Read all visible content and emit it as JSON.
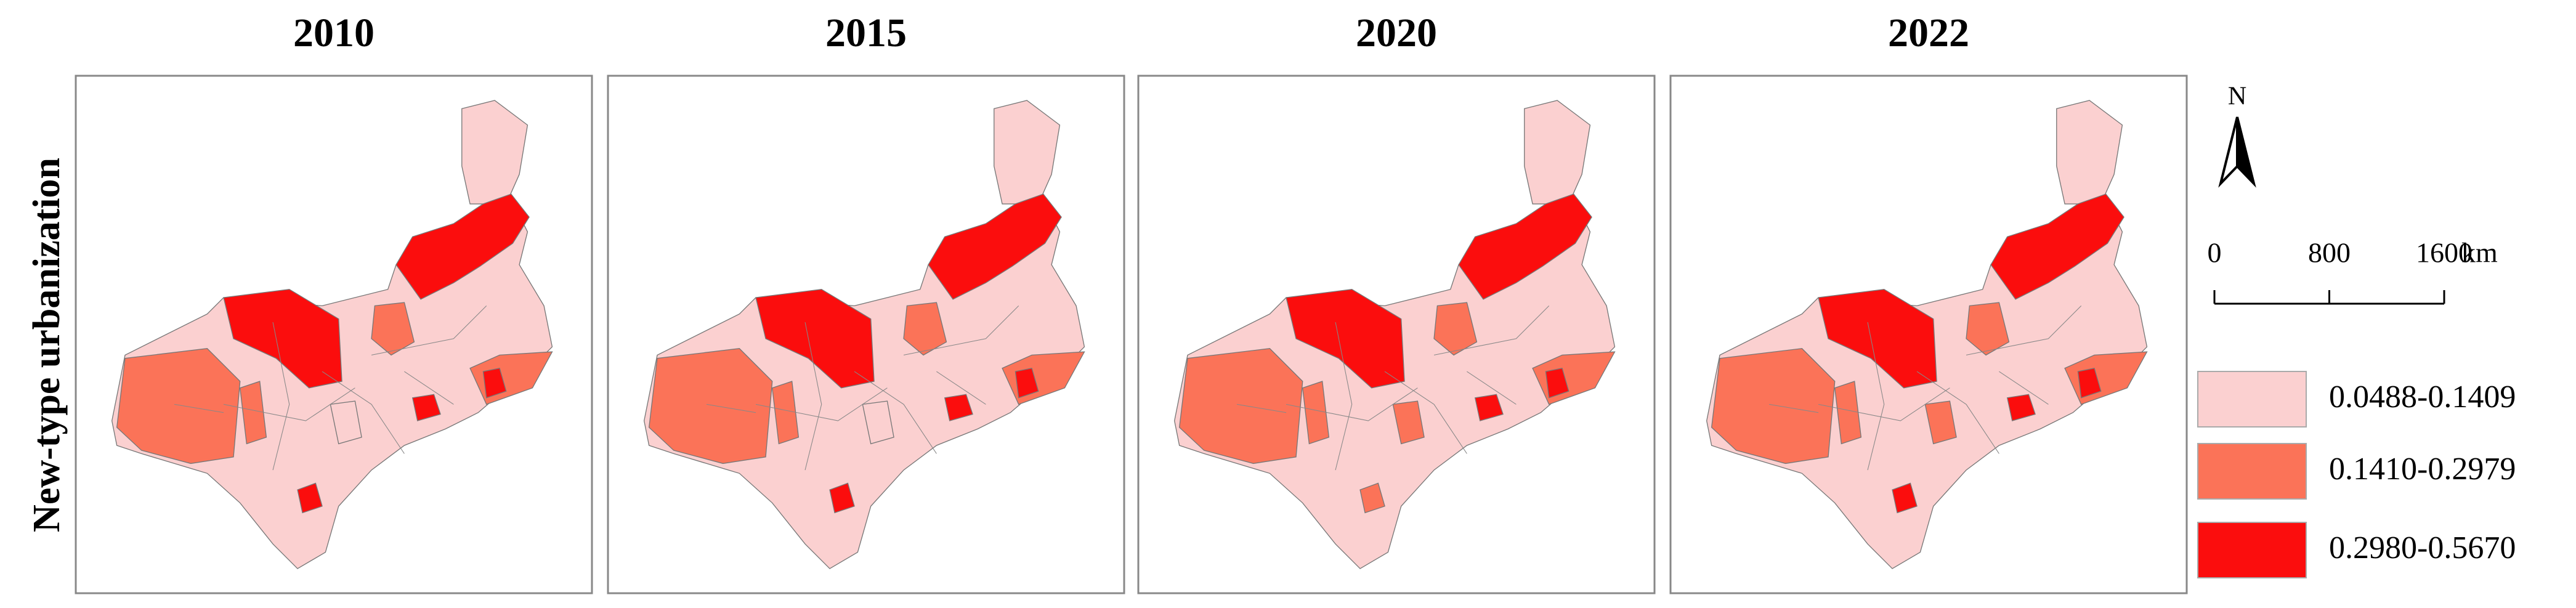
{
  "panels": [
    {
      "title": "2010"
    },
    {
      "title": "2015"
    },
    {
      "title": "2020"
    },
    {
      "title": "2022"
    }
  ],
  "side_label": "New-type urbanization",
  "north": "N",
  "scale_bar": {
    "ticks": [
      0,
      800,
      1600
    ],
    "unit": "km"
  },
  "legend": [
    {
      "label": "0.0488-0.1409",
      "color": "#fbd0d0"
    },
    {
      "label": "0.1410-0.2979",
      "color": "#fb7358"
    },
    {
      "label": "0.2980-0.5670",
      "color": "#fb0d0d"
    }
  ]
}
